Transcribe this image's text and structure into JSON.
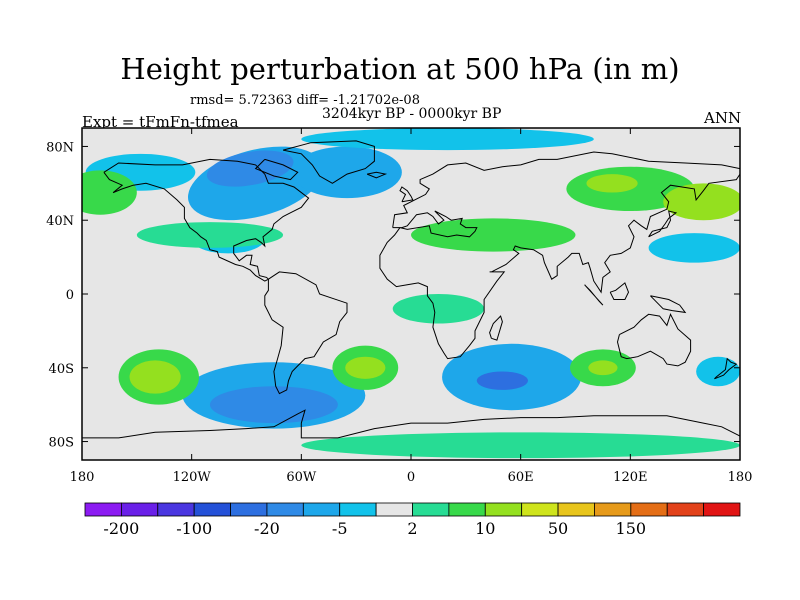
{
  "chart_data": {
    "type": "heatmap",
    "subtype": "filled-contour-map",
    "title": "Height perturbation at 500 hPa (in m)",
    "stats_line": "rmsd= 5.72363 diff= -1.21702e-08",
    "period_label": "3204kyr BP - 0000kyr BP",
    "left_label": "Expt = tFmFn-tfmea",
    "right_label": "ANN",
    "xlim": [
      -180,
      180
    ],
    "ylim": [
      -90,
      90
    ],
    "x_ticks": [
      {
        "value": -180,
        "label": "180"
      },
      {
        "value": -120,
        "label": "120W"
      },
      {
        "value": -60,
        "label": "60W"
      },
      {
        "value": 0,
        "label": "0"
      },
      {
        "value": 60,
        "label": "60E"
      },
      {
        "value": 120,
        "label": "120E"
      },
      {
        "value": 180,
        "label": "180"
      }
    ],
    "y_ticks": [
      {
        "value": 80,
        "label": "80N"
      },
      {
        "value": 40,
        "label": "40N"
      },
      {
        "value": 0,
        "label": "0"
      },
      {
        "value": -40,
        "label": "40S"
      },
      {
        "value": -80,
        "label": "80S"
      }
    ],
    "colorbar": {
      "colors": [
        "#8c1bf2",
        "#6a20e8",
        "#4a36e0",
        "#2451d8",
        "#2d6fe0",
        "#2f8ae6",
        "#1ea7ea",
        "#12c2ea",
        "#e6e6e6",
        "#27dc94",
        "#38d94a",
        "#94e01f",
        "#cfe41c",
        "#e8c51c",
        "#e69a1a",
        "#e46e16",
        "#e2421a",
        "#e11414"
      ],
      "labels": [
        {
          "boundary": 1,
          "label": "-200"
        },
        {
          "boundary": 3,
          "label": "-100"
        },
        {
          "boundary": 5,
          "label": "-20"
        },
        {
          "boundary": 7,
          "label": "-5"
        },
        {
          "boundary": 9,
          "label": "2"
        },
        {
          "boundary": 11,
          "label": "10"
        },
        {
          "boundary": 13,
          "label": "50"
        },
        {
          "boundary": 15,
          "label": "150"
        }
      ]
    },
    "regions": [
      {
        "id": "neg-north-america",
        "lon": -85,
        "lat": 60,
        "rx": 38,
        "ry": 18,
        "rot": -15,
        "level": 6
      },
      {
        "id": "neg-north-america-core",
        "lon": -88,
        "lat": 68,
        "rx": 24,
        "ry": 9,
        "rot": -10,
        "level": 5
      },
      {
        "id": "neg-north-atlantic",
        "lon": -35,
        "lat": 66,
        "rx": 30,
        "ry": 14,
        "rot": 0,
        "level": 6
      },
      {
        "id": "neg-north-pacific",
        "lon": -148,
        "lat": 66,
        "rx": 30,
        "ry": 10,
        "rot": 0,
        "level": 7
      },
      {
        "id": "neg-arctic-belt",
        "lon": 20,
        "lat": 84,
        "rx": 80,
        "ry": 6,
        "rot": 0,
        "level": 7
      },
      {
        "id": "neg-mid-atlantic-low",
        "lon": -100,
        "lat": 30,
        "rx": 20,
        "ry": 8,
        "rot": 0,
        "level": 7
      },
      {
        "id": "neg-west-pacific",
        "lon": 155,
        "lat": 25,
        "rx": 25,
        "ry": 8,
        "rot": 0,
        "level": 7
      },
      {
        "id": "neg-south-pacific",
        "lon": -75,
        "lat": -55,
        "rx": 50,
        "ry": 18,
        "rot": 0,
        "level": 6
      },
      {
        "id": "neg-south-pacific-core",
        "lon": -75,
        "lat": -60,
        "rx": 35,
        "ry": 10,
        "rot": 0,
        "level": 5
      },
      {
        "id": "neg-south-indian",
        "lon": 55,
        "lat": -45,
        "rx": 38,
        "ry": 18,
        "rot": 0,
        "level": 6
      },
      {
        "id": "neg-south-indian-core",
        "lon": 50,
        "lat": -47,
        "rx": 14,
        "ry": 5,
        "rot": 0,
        "level": 4
      },
      {
        "id": "neg-east-australia",
        "lon": 168,
        "lat": -42,
        "rx": 12,
        "ry": 8,
        "rot": 0,
        "level": 7
      },
      {
        "id": "pos-north-africa-belt",
        "lon": 45,
        "lat": 32,
        "rx": 45,
        "ry": 9,
        "rot": 0,
        "level": 10
      },
      {
        "id": "pos-east-pacific-belt",
        "lon": -110,
        "lat": 32,
        "rx": 40,
        "ry": 7,
        "rot": 0,
        "level": 9
      },
      {
        "id": "pos-siberia",
        "lon": 120,
        "lat": 57,
        "rx": 35,
        "ry": 12,
        "rot": 0,
        "level": 10
      },
      {
        "id": "pos-siberia-core",
        "lon": 110,
        "lat": 60,
        "rx": 14,
        "ry": 5,
        "rot": 0,
        "level": 11
      },
      {
        "id": "pos-east-asia",
        "lon": 160,
        "lat": 50,
        "rx": 22,
        "ry": 10,
        "rot": 0,
        "level": 11
      },
      {
        "id": "pos-alaska",
        "lon": -170,
        "lat": 55,
        "rx": 20,
        "ry": 12,
        "rot": 0,
        "level": 10
      },
      {
        "id": "pos-tropical-atlantic",
        "lon": 15,
        "lat": -8,
        "rx": 25,
        "ry": 8,
        "rot": 0,
        "level": 9
      },
      {
        "id": "pos-south-pacific",
        "lon": -138,
        "lat": -45,
        "rx": 22,
        "ry": 15,
        "rot": 0,
        "level": 10
      },
      {
        "id": "pos-south-pacific-core",
        "lon": -140,
        "lat": -45,
        "rx": 14,
        "ry": 9,
        "rot": 0,
        "level": 11
      },
      {
        "id": "pos-south-atlantic",
        "lon": -25,
        "lat": -40,
        "rx": 18,
        "ry": 12,
        "rot": 0,
        "level": 10
      },
      {
        "id": "pos-south-atlantic-core",
        "lon": -25,
        "lat": -40,
        "rx": 11,
        "ry": 6,
        "rot": 0,
        "level": 11
      },
      {
        "id": "pos-south-indian-east",
        "lon": 105,
        "lat": -40,
        "rx": 18,
        "ry": 10,
        "rot": 0,
        "level": 10
      },
      {
        "id": "pos-south-indian-east-core",
        "lon": 105,
        "lat": -40,
        "rx": 8,
        "ry": 4,
        "rot": 0,
        "level": 11
      },
      {
        "id": "pos-antarctic-band",
        "lon": 60,
        "lat": -82,
        "rx": 120,
        "ry": 7,
        "rot": 0,
        "level": 9
      }
    ]
  },
  "colors": {
    "ocean_fill": "#e6e6e6",
    "coast": "#000000"
  }
}
